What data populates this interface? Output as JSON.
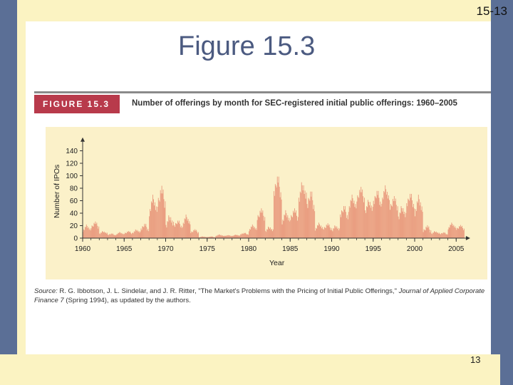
{
  "slide": {
    "number": "15-13",
    "title": "Figure 15.3",
    "page": "13"
  },
  "figure": {
    "badge": "FIGURE 15.3",
    "caption": "Number of offerings by month for SEC-registered initial public offerings: 1960–2005",
    "source_label": "Source:",
    "source_authors": "R. G. Ibbotson, J. L. Sindelar, and J. R. Ritter, \"The Market's Problems with the Pricing of Initial Public Offerings,\"",
    "source_journal": "Journal of Applied Corporate Finance 7",
    "source_tail": "(Spring 1994), as updated by the authors."
  },
  "colors": {
    "band": "#5b6f96",
    "cream": "#fbf3c2",
    "badge": "#b83a4b",
    "bars": "#e8967a",
    "title": "#4b5a80"
  },
  "chart_data": {
    "type": "bar",
    "title": "",
    "xlabel": "Year",
    "ylabel": "Number of IPOs",
    "xlim": [
      1960,
      2006
    ],
    "ylim": [
      0,
      150
    ],
    "x_ticks": [
      "1960",
      "1965",
      "1970",
      "1975",
      "1980",
      "1985",
      "1990",
      "1995",
      "2000",
      "2005"
    ],
    "y_ticks": [
      "0",
      "20",
      "40",
      "60",
      "80",
      "100",
      "120",
      "140"
    ],
    "grid": false,
    "series": [
      {
        "values_by_year": [
          {
            "year": 1960,
            "peak": 22,
            "typical": 10
          },
          {
            "year": 1961,
            "peak": 28,
            "typical": 14
          },
          {
            "year": 1962,
            "peak": 12,
            "typical": 6
          },
          {
            "year": 1963,
            "peak": 8,
            "typical": 4
          },
          {
            "year": 1964,
            "peak": 10,
            "typical": 5
          },
          {
            "year": 1965,
            "peak": 12,
            "typical": 6
          },
          {
            "year": 1966,
            "peak": 15,
            "typical": 7
          },
          {
            "year": 1967,
            "peak": 25,
            "typical": 10
          },
          {
            "year": 1968,
            "peak": 70,
            "typical": 35
          },
          {
            "year": 1969,
            "peak": 88,
            "typical": 45
          },
          {
            "year": 1970,
            "peak": 40,
            "typical": 15
          },
          {
            "year": 1971,
            "peak": 30,
            "typical": 15
          },
          {
            "year": 1972,
            "peak": 38,
            "typical": 18
          },
          {
            "year": 1973,
            "peak": 15,
            "typical": 7
          },
          {
            "year": 1974,
            "peak": 3,
            "typical": 1
          },
          {
            "year": 1975,
            "peak": 3,
            "typical": 1
          },
          {
            "year": 1976,
            "peak": 6,
            "typical": 3
          },
          {
            "year": 1977,
            "peak": 5,
            "typical": 3
          },
          {
            "year": 1978,
            "peak": 6,
            "typical": 3
          },
          {
            "year": 1979,
            "peak": 9,
            "typical": 5
          },
          {
            "year": 1980,
            "peak": 22,
            "typical": 11
          },
          {
            "year": 1981,
            "peak": 50,
            "typical": 26
          },
          {
            "year": 1982,
            "peak": 20,
            "typical": 9
          },
          {
            "year": 1983,
            "peak": 105,
            "typical": 58
          },
          {
            "year": 1984,
            "peak": 45,
            "typical": 22
          },
          {
            "year": 1985,
            "peak": 50,
            "typical": 26
          },
          {
            "year": 1986,
            "peak": 95,
            "typical": 55
          },
          {
            "year": 1987,
            "peak": 80,
            "typical": 40
          },
          {
            "year": 1988,
            "peak": 25,
            "typical": 12
          },
          {
            "year": 1989,
            "peak": 25,
            "typical": 12
          },
          {
            "year": 1990,
            "peak": 22,
            "typical": 10
          },
          {
            "year": 1991,
            "peak": 55,
            "typical": 28
          },
          {
            "year": 1992,
            "peak": 70,
            "typical": 42
          },
          {
            "year": 1993,
            "peak": 85,
            "typical": 55
          },
          {
            "year": 1994,
            "peak": 65,
            "typical": 38
          },
          {
            "year": 1995,
            "peak": 80,
            "typical": 48
          },
          {
            "year": 1996,
            "peak": 85,
            "typical": 55
          },
          {
            "year": 1997,
            "peak": 70,
            "typical": 42
          },
          {
            "year": 1998,
            "peak": 55,
            "typical": 28
          },
          {
            "year": 1999,
            "peak": 75,
            "typical": 45
          },
          {
            "year": 2000,
            "peak": 70,
            "typical": 35
          },
          {
            "year": 2001,
            "peak": 22,
            "typical": 8
          },
          {
            "year": 2002,
            "peak": 12,
            "typical": 6
          },
          {
            "year": 2003,
            "peak": 10,
            "typical": 5
          },
          {
            "year": 2004,
            "peak": 25,
            "typical": 14
          },
          {
            "year": 2005,
            "peak": 22,
            "typical": 12
          }
        ]
      }
    ]
  }
}
